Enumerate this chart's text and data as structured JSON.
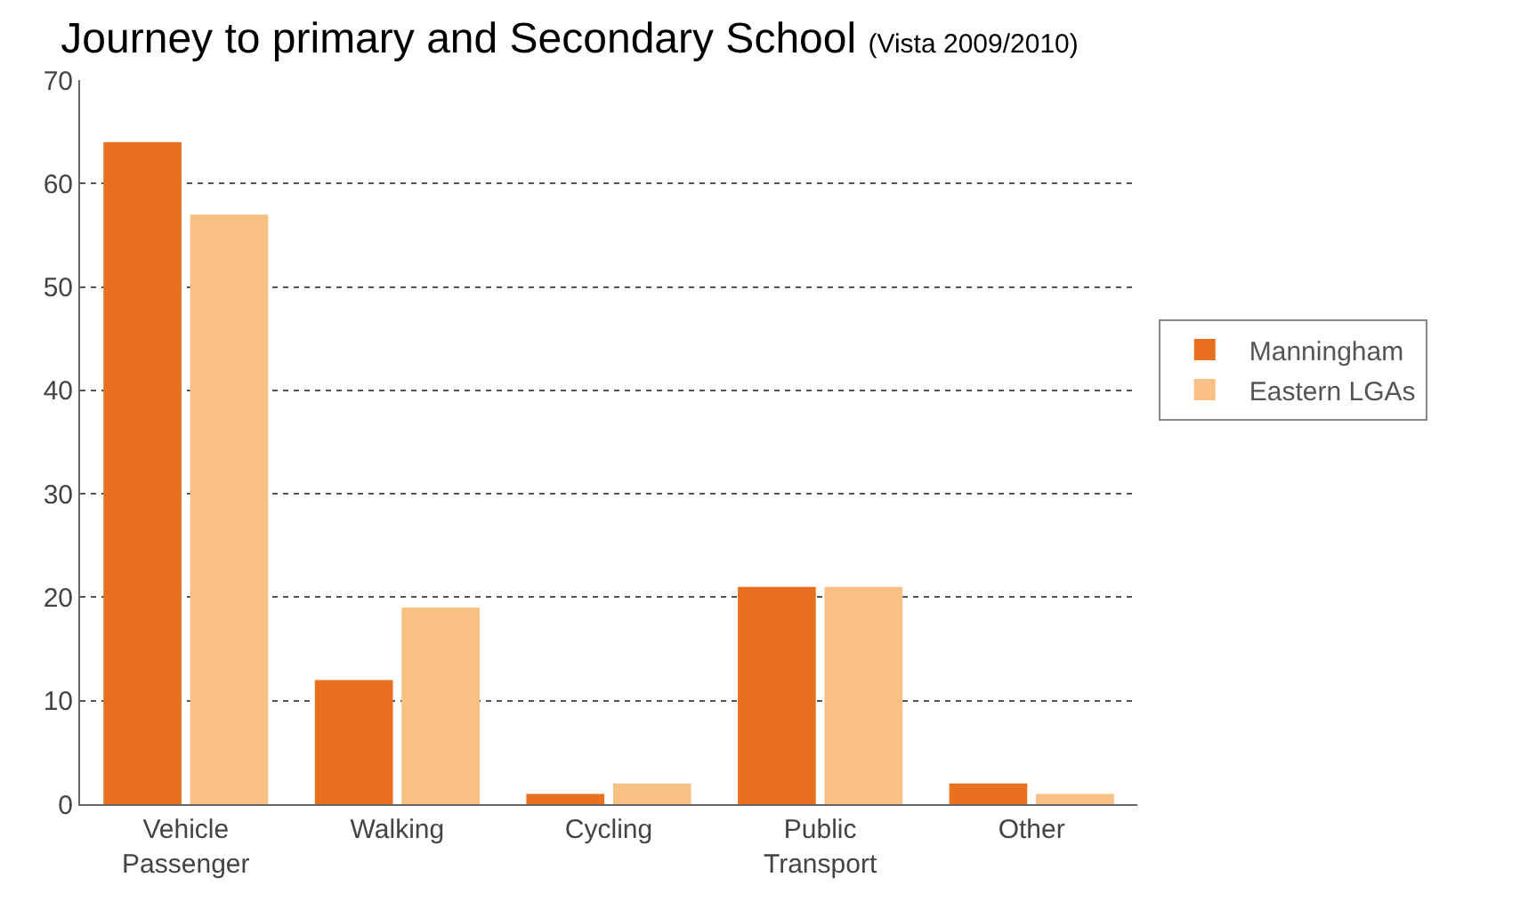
{
  "chart_data": {
    "type": "bar",
    "title": "Journey to primary and Secondary School",
    "subtitle": "(Vista 2009/2010)",
    "categories": [
      "Vehicle Passenger",
      "Walking",
      "Cycling",
      "Public Transport",
      "Other"
    ],
    "series": [
      {
        "name": "Manningham",
        "color": "#e8701e",
        "values": [
          64,
          12,
          1,
          21,
          2
        ]
      },
      {
        "name": "Eastern LGAs",
        "color": "#f9c083",
        "values": [
          57,
          19,
          2,
          21,
          1
        ]
      }
    ],
    "ylim": [
      0,
      70
    ],
    "yticks": [
      0,
      10,
      20,
      30,
      40,
      50,
      60,
      70
    ],
    "grid": "y",
    "legend": "right"
  }
}
